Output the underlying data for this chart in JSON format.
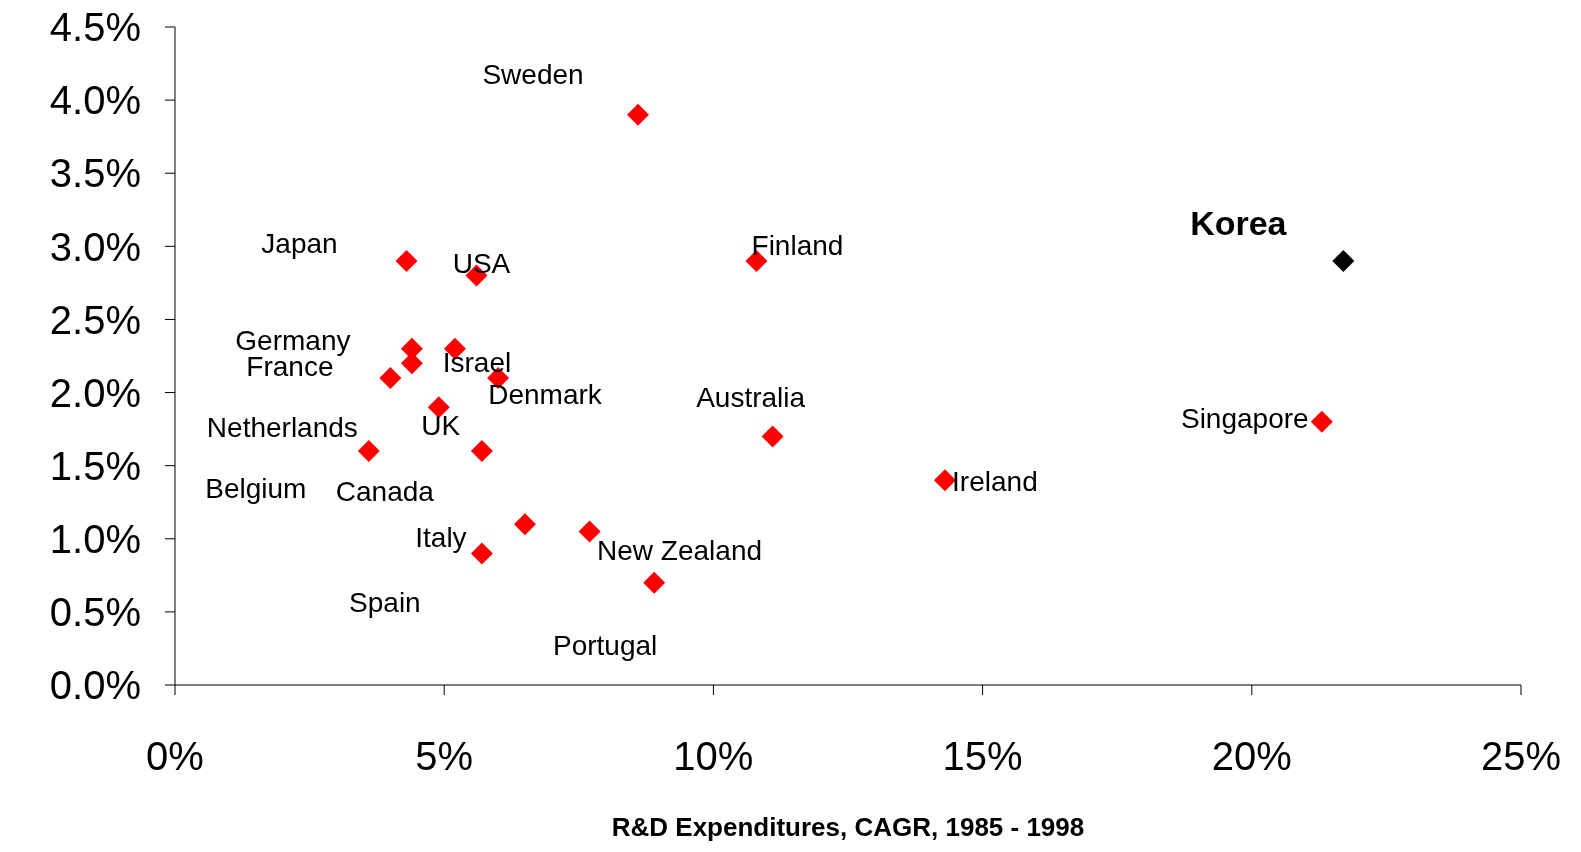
{
  "chart_data": {
    "type": "scatter",
    "xlabel": "R&D Expenditures, CAGR, 1985 - 1998",
    "marker": "diamond",
    "grid": false,
    "legend": false,
    "xlim": [
      0,
      25
    ],
    "xticks": [
      {
        "value": 0,
        "label": "0%"
      },
      {
        "value": 5,
        "label": "5%"
      },
      {
        "value": 10,
        "label": "10%"
      },
      {
        "value": 15,
        "label": "15%"
      },
      {
        "value": 20,
        "label": "20%"
      },
      {
        "value": 25,
        "label": "25%"
      }
    ],
    "ylim": [
      0,
      4.5
    ],
    "yticks": [
      {
        "value": 0,
        "label": "0.0%"
      },
      {
        "value": 0.5,
        "label": "0.5%"
      },
      {
        "value": 1,
        "label": "1.0%"
      },
      {
        "value": 1.5,
        "label": "1.5%"
      },
      {
        "value": 2,
        "label": "2.0%"
      },
      {
        "value": 2.5,
        "label": "2.5%"
      },
      {
        "value": 3,
        "label": "3.0%"
      },
      {
        "value": 3.5,
        "label": "3.5%"
      },
      {
        "value": 4,
        "label": "4.0%"
      },
      {
        "value": 4.5,
        "label": "4.5%"
      }
    ],
    "series": [
      {
        "color": "#ff0000",
        "x": [
          8.6,
          4.3,
          5.6,
          10.8,
          4.4,
          4.4,
          4.0,
          5.2,
          6.0,
          4.9,
          3.6,
          5.7,
          6.5,
          7.7,
          5.7,
          8.9,
          11.1,
          14.3,
          21.3
        ],
        "values": [
          3.9,
          2.9,
          2.8,
          2.9,
          2.3,
          2.2,
          2.1,
          2.3,
          2.1,
          1.9,
          1.6,
          1.6,
          1.1,
          1.05,
          0.9,
          0.7,
          1.7,
          1.4,
          1.8
        ]
      },
      {
        "color": "#000000",
        "x": [
          21.7
        ],
        "values": [
          2.9
        ]
      }
    ],
    "annotations": [
      {
        "text": "Sweden",
        "x": 8.6,
        "y": 3.9
      },
      {
        "text": "Japan",
        "x": 4.3,
        "y": 2.9
      },
      {
        "text": "USA",
        "x": 5.6,
        "y": 2.8
      },
      {
        "text": "Finland",
        "x": 10.8,
        "y": 2.9
      },
      {
        "text": "Germany",
        "x": 4.4,
        "y": 2.3
      },
      {
        "text": "France",
        "x": 4.4,
        "y": 2.2
      },
      {
        "text": "Netherlands",
        "x": 4.0,
        "y": 2.1
      },
      {
        "text": "Israel",
        "x": 5.2,
        "y": 2.3
      },
      {
        "text": "Denmark",
        "x": 6.0,
        "y": 2.1
      },
      {
        "text": "UK",
        "x": 4.9,
        "y": 1.9
      },
      {
        "text": "Belgium",
        "x": 3.6,
        "y": 1.6
      },
      {
        "text": "Canada",
        "x": 5.7,
        "y": 1.6
      },
      {
        "text": "Italy",
        "x": 6.5,
        "y": 1.1
      },
      {
        "text": "New Zealand",
        "x": 7.7,
        "y": 1.05
      },
      {
        "text": "Spain",
        "x": 5.7,
        "y": 0.9
      },
      {
        "text": "Portugal",
        "x": 8.9,
        "y": 0.7
      },
      {
        "text": "Australia",
        "x": 11.1,
        "y": 1.7
      },
      {
        "text": "Ireland",
        "x": 14.3,
        "y": 1.4
      },
      {
        "text": "Singapore",
        "x": 21.3,
        "y": 1.8
      },
      {
        "text": "Korea",
        "x": 21.7,
        "y": 2.9
      }
    ]
  }
}
